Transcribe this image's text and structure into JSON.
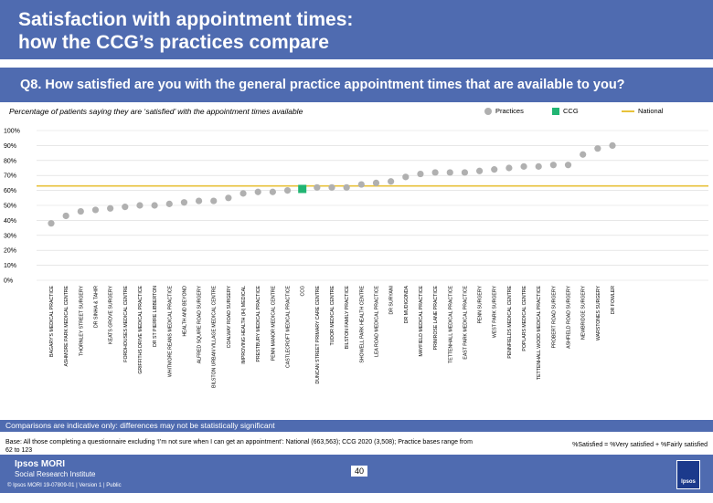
{
  "header": {
    "title_line1": "Satisfaction with appointment times:",
    "title_line2": "how the CCG’s practices compare"
  },
  "question": "Q8. How satisfied are you with the general practice appointment times that are available to you?",
  "subtitle": "Percentage of patients saying they are ‘satisfied’ with the appointment times available",
  "legend": {
    "practices": "Practices",
    "ccg": "CCG",
    "national": "National"
  },
  "colors": {
    "practice": "#b0b0b0",
    "ccg": "#22b573",
    "national": "#e8c23a",
    "brand": "#4f6bb0"
  },
  "chart_data": {
    "type": "scatter",
    "title": "Percentage of patients saying they are ‘satisfied’ with the appointment times available",
    "yticks": [
      "0%",
      "10%",
      "20%",
      "30%",
      "40%",
      "50%",
      "60%",
      "70%",
      "80%",
      "90%",
      "100%"
    ],
    "ylim": [
      0,
      100
    ],
    "national": 63,
    "categories": [
      "BAGARY'S MEDICAL PRACTICE",
      "ASHMORE PARK MEDICAL CENTRE",
      "THORNLEY STREET SURGERY",
      "DR SINHA & TAHIR",
      "KEATS GROVE SURGERY",
      "FORDHOUSES MEDICAL CENTRE",
      "GRIFFITHS DRIVE MEDICAL PRACTICE",
      "DR ST PIERRE LIBBERTON",
      "WHITMORE REANS MEDICAL PRACTICE",
      "HEALTH AND BEYOND",
      "ALFRED SQUIRE ROAD SURGERY",
      "BILSTON URBAN VILLAGE MEDICAL CENTRE",
      "COALWAY ROAD SURGERY",
      "IMPROVING HEALTH (IH) MEDICAL",
      "PRESTBURY MEDICAL PRACTICE",
      "PENN MANOR MEDICAL CENTRE",
      "CASTLECROFT MEDICAL PRACTICE",
      "CCG",
      "DUNCAN STREET PRIMARY CARE CENTRE",
      "TUDOR MEDICAL CENTRE",
      "BILSTON FAMILY PRACTICE",
      "SHOWELL PARK HEALTH CENTRE",
      "LEA ROAD MEDICAL PRACTICE",
      "DR SURYANI",
      "DR MUDIGONDA",
      "MAYFIELD MEDICAL PRACTICE",
      "PRIMROSE LANE PRACTICE",
      "TETTENHALL MEDICAL PRACTICE",
      "EAST PARK MEDICAL PRACTICE",
      "PENN SURGERY",
      "WEST PARK SURGERY",
      "PENNFIELDS MEDICAL CENTRE",
      "POPLARS MEDICAL CENTRE",
      "TETTENHALL WOOD MEDICAL PRACTICE",
      "PROBERT ROAD SURGERY",
      "ASHFIELD ROAD SURGERY",
      "NEWBRIDGE SURGERY",
      "WARSTONES SURGERY",
      "DR FOWLER"
    ],
    "values": [
      38,
      43,
      46,
      47,
      48,
      49,
      50,
      50,
      51,
      52,
      53,
      53,
      55,
      58,
      59,
      59,
      60,
      61,
      62,
      62,
      62,
      64,
      65,
      66,
      69,
      71,
      72,
      72,
      72,
      73,
      74,
      75,
      76,
      76,
      77,
      77,
      84,
      88,
      90
    ],
    "ccg_index": 17
  },
  "caveat": "Comparisons are indicative only: differences may not be statistically significant",
  "base_note": "Base: All those completing a questionnaire excluding ‘I’m not sure when I can get an appointment’: National (663,563); CCG 2020 (3,508); Practice bases range from 62 to 123",
  "definition": "%Satisfied = %Very satisfied + %Fairly satisfied",
  "footer": {
    "brand_line1": "Ipsos MORI",
    "brand_line2": "Social Research Institute",
    "copyright": "© Ipsos MORI     19-07809-01 | Version 1 | Public",
    "page_number": "40",
    "logo_text": "Ipsos"
  }
}
